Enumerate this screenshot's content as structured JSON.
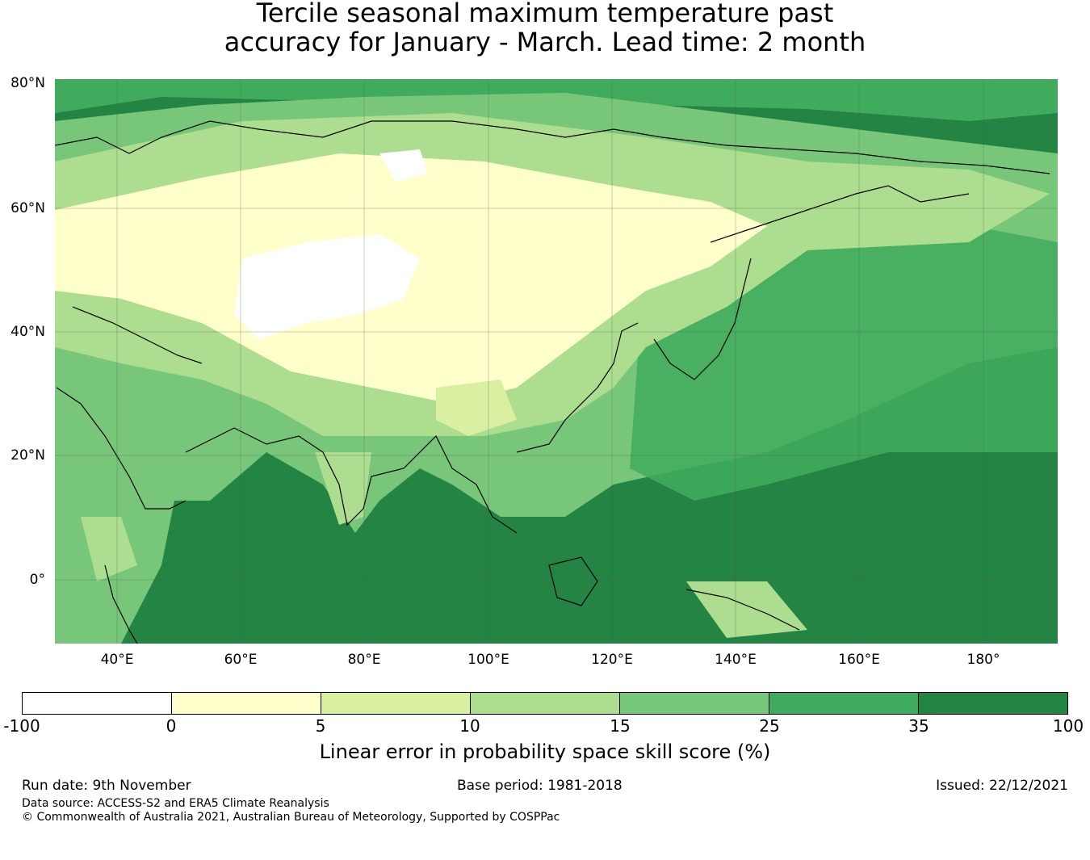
{
  "title": {
    "line1": "Tercile seasonal maximum temperature past",
    "line2": "accuracy for January - March. Lead time: 2 month"
  },
  "map": {
    "lat_labels": [
      "80°N",
      "60°N",
      "40°N",
      "20°N",
      "0°"
    ],
    "lon_labels": [
      "40°E",
      "60°E",
      "80°E",
      "100°E",
      "120°E",
      "140°E",
      "160°E",
      "180°"
    ],
    "extent": {
      "lon_min": 30,
      "lon_max": 192,
      "lat_min": -10,
      "lat_max": 81
    },
    "region": "Asia and western Pacific"
  },
  "colorbar": {
    "ticks": [
      "-100",
      "0",
      "5",
      "10",
      "15",
      "25",
      "35",
      "100"
    ],
    "colors": [
      "#ffffff",
      "#ffffcc",
      "#d9f0a3",
      "#addd8e",
      "#78c679",
      "#41ab5d",
      "#238443"
    ],
    "label": "Linear error in probability space skill score (%)"
  },
  "footer": {
    "run_date": "Run date: 9th November",
    "base_period": "Base period: 1981-2018",
    "issued": "Issued: 22/12/2021",
    "data_source": "Data source: ACCESS-S2 and ERA5 Climate Reanalysis",
    "copyright": "© Commonwealth of Australia 2021, Australian Bureau of Meteorology, Supported by COSPPac"
  }
}
